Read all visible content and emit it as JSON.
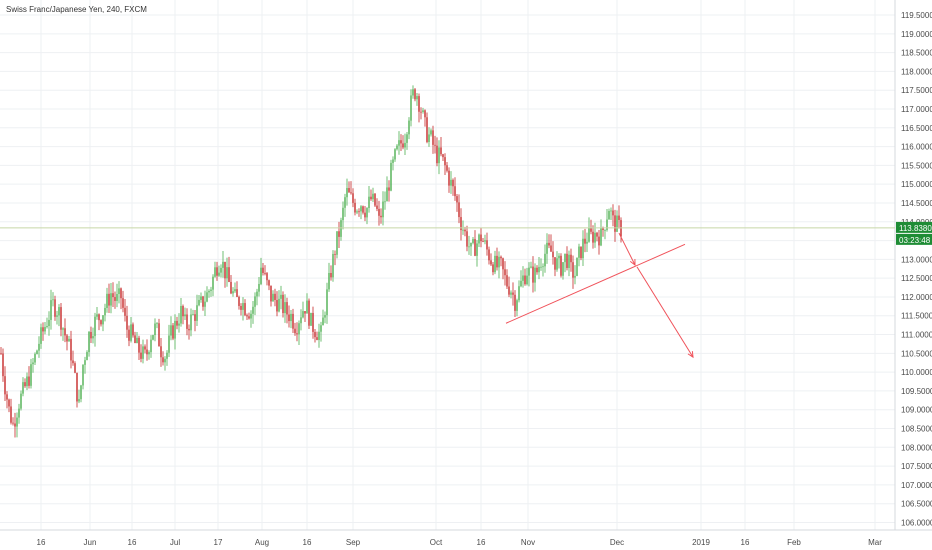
{
  "chart_title": "Swiss Franc/Japanese Yen, 240, FXCM",
  "colors": {
    "up": "#4caf50",
    "down": "#c62828",
    "annotation": "#f0525a",
    "price_line": "#c8d6a8",
    "price_tag": "#1e8c35",
    "grid": "#eef0f3"
  },
  "chart_data": {
    "type": "candlestick",
    "title": "Swiss Franc/Japanese Yen, 240, FXCM",
    "ylim": [
      105.8,
      119.9
    ],
    "y_ticks": [
      "106.0000",
      "106.5000",
      "107.0000",
      "107.5000",
      "108.0000",
      "108.5000",
      "109.0000",
      "109.5000",
      "110.0000",
      "110.5000",
      "111.0000",
      "111.5000",
      "112.0000",
      "112.5000",
      "113.0000",
      "113.5000",
      "114.0000",
      "114.5000",
      "115.0000",
      "115.5000",
      "116.0000",
      "116.5000",
      "117.0000",
      "117.5000",
      "118.0000",
      "118.5000",
      "119.0000",
      "119.5000"
    ],
    "x_ticks": [
      "16",
      "Jun",
      "16",
      "Jul",
      "17",
      "Aug",
      "16",
      "Sep",
      "Oct",
      "16",
      "Nov",
      "Dec",
      "2019",
      "16",
      "Feb",
      "Mar"
    ],
    "price_path": [
      [
        0,
        110.5
      ],
      [
        3,
        109.8
      ],
      [
        8,
        109.0
      ],
      [
        12,
        108.6
      ],
      [
        18,
        109.2
      ],
      [
        24,
        109.6
      ],
      [
        30,
        110.0
      ],
      [
        38,
        110.8
      ],
      [
        45,
        111.3
      ],
      [
        52,
        111.8
      ],
      [
        58,
        111.6
      ],
      [
        64,
        111.0
      ],
      [
        70,
        110.5
      ],
      [
        74,
        109.8
      ],
      [
        78,
        109.1
      ],
      [
        82,
        110.2
      ],
      [
        88,
        111.0
      ],
      [
        95,
        111.4
      ],
      [
        100,
        111.5
      ],
      [
        105,
        111.8
      ],
      [
        110,
        112.1
      ],
      [
        115,
        111.9
      ],
      [
        120,
        112.0
      ],
      [
        125,
        111.2
      ],
      [
        130,
        111.0
      ],
      [
        135,
        110.7
      ],
      [
        140,
        110.5
      ],
      [
        145,
        110.4
      ],
      [
        150,
        111.0
      ],
      [
        155,
        111.2
      ],
      [
        160,
        110.6
      ],
      [
        165,
        110.4
      ],
      [
        170,
        111.0
      ],
      [
        175,
        111.3
      ],
      [
        180,
        111.6
      ],
      [
        185,
        111.2
      ],
      [
        190,
        111.4
      ],
      [
        195,
        111.6
      ],
      [
        200,
        111.8
      ],
      [
        205,
        112.0
      ],
      [
        210,
        112.3
      ],
      [
        215,
        112.8
      ],
      [
        220,
        113.0
      ],
      [
        225,
        112.6
      ],
      [
        230,
        112.2
      ],
      [
        235,
        111.9
      ],
      [
        240,
        111.9
      ],
      [
        245,
        111.7
      ],
      [
        250,
        111.6
      ],
      [
        255,
        112.0
      ],
      [
        260,
        112.8
      ],
      [
        265,
        112.4
      ],
      [
        270,
        112.0
      ],
      [
        275,
        111.9
      ],
      [
        280,
        111.8
      ],
      [
        285,
        111.6
      ],
      [
        290,
        111.5
      ],
      [
        295,
        111.2
      ],
      [
        300,
        111.6
      ],
      [
        305,
        111.8
      ],
      [
        310,
        111.3
      ],
      [
        315,
        111.1
      ],
      [
        320,
        111.0
      ],
      [
        325,
        111.9
      ],
      [
        330,
        112.7
      ],
      [
        335,
        113.4
      ],
      [
        340,
        113.9
      ],
      [
        345,
        114.8
      ],
      [
        350,
        114.6
      ],
      [
        355,
        114.4
      ],
      [
        360,
        114.5
      ],
      [
        365,
        114.3
      ],
      [
        370,
        114.6
      ],
      [
        375,
        114.4
      ],
      [
        378,
        114.0
      ],
      [
        382,
        114.4
      ],
      [
        386,
        114.8
      ],
      [
        390,
        115.3
      ],
      [
        395,
        115.8
      ],
      [
        400,
        116.1
      ],
      [
        404,
        116.3
      ],
      [
        408,
        116.9
      ],
      [
        413,
        117.5
      ],
      [
        416,
        117.4
      ],
      [
        420,
        117.0
      ],
      [
        425,
        116.4
      ],
      [
        430,
        116.2
      ],
      [
        435,
        115.8
      ],
      [
        440,
        115.7
      ],
      [
        445,
        115.4
      ],
      [
        450,
        115.0
      ],
      [
        455,
        114.6
      ],
      [
        460,
        114.0
      ],
      [
        465,
        113.6
      ],
      [
        470,
        113.2
      ],
      [
        475,
        113.4
      ],
      [
        480,
        113.6
      ],
      [
        485,
        113.3
      ],
      [
        490,
        113.0
      ],
      [
        495,
        112.8
      ],
      [
        500,
        112.8
      ],
      [
        505,
        112.4
      ],
      [
        510,
        112.2
      ],
      [
        514,
        111.9
      ],
      [
        518,
        112.2
      ],
      [
        522,
        112.5
      ],
      [
        526,
        112.7
      ],
      [
        530,
        112.6
      ],
      [
        535,
        112.6
      ],
      [
        540,
        113.0
      ],
      [
        545,
        113.2
      ],
      [
        550,
        113.2
      ],
      [
        555,
        112.9
      ],
      [
        560,
        112.8
      ],
      [
        565,
        113.1
      ],
      [
        570,
        112.7
      ],
      [
        574,
        112.6
      ],
      [
        578,
        113.1
      ],
      [
        582,
        113.4
      ],
      [
        586,
        113.6
      ],
      [
        590,
        113.6
      ],
      [
        595,
        113.7
      ],
      [
        600,
        113.6
      ],
      [
        604,
        114.0
      ],
      [
        608,
        114.4
      ],
      [
        612,
        114.0
      ],
      [
        616,
        113.9
      ],
      [
        620,
        113.8
      ]
    ],
    "current_price": 113.838,
    "current_price_label": "113.8380",
    "countdown_label": "03:23:48",
    "annotations": {
      "support_line": {
        "from": [
          506,
          111.3
        ],
        "to": [
          685,
          113.4
        ]
      },
      "arrow_1": {
        "from": [
          619,
          113.7
        ],
        "to": [
          635,
          112.85
        ]
      },
      "arrow_2": {
        "from": [
          637,
          112.8
        ],
        "to": [
          693,
          110.4
        ]
      }
    }
  }
}
